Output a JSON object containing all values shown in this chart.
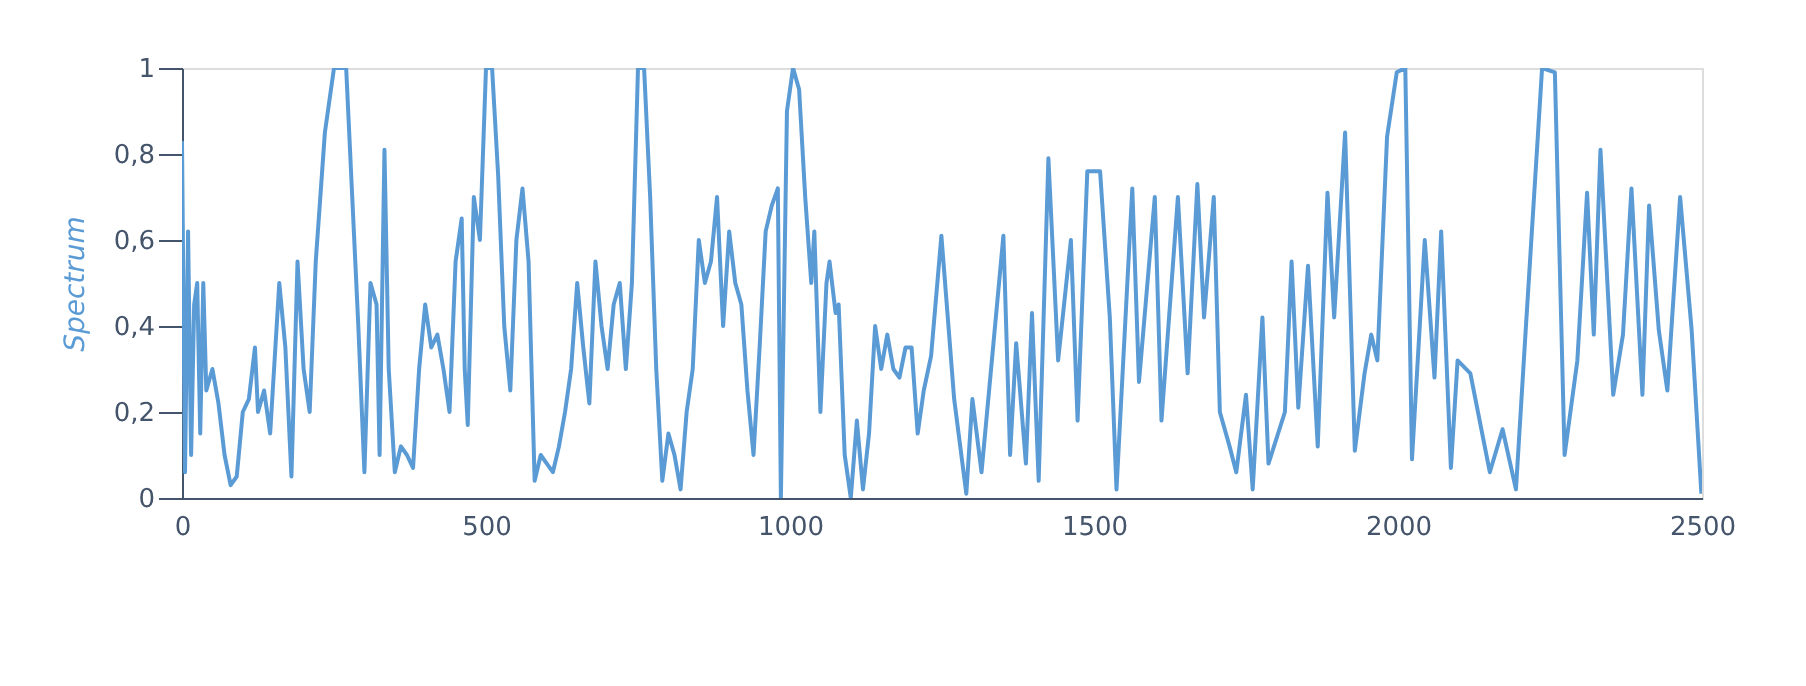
{
  "chart_data": {
    "type": "line",
    "ylabel": "Spectrum",
    "xlim": [
      0,
      2500
    ],
    "xticks": [
      0,
      500,
      1000,
      1500,
      2000,
      2500
    ],
    "ylim": [
      0,
      1
    ],
    "yticks": [
      {
        "value": 0,
        "label": "0"
      },
      {
        "value": 0.2,
        "label": "0,2"
      },
      {
        "value": 0.4,
        "label": "0,4"
      },
      {
        "value": 0.6,
        "label": "0,6"
      },
      {
        "value": 0.8,
        "label": "0,8"
      },
      {
        "value": 1,
        "label": "1"
      }
    ],
    "grid": false,
    "marker": "none",
    "line_style": "solid",
    "series": [
      {
        "color": "#5b9bd5",
        "x": [
          0,
          5,
          10,
          15,
          20,
          25,
          30,
          35,
          40,
          50,
          60,
          70,
          80,
          90,
          100,
          110,
          120,
          125,
          135,
          145,
          160,
          170,
          180,
          190,
          200,
          210,
          220,
          235,
          250,
          270,
          280,
          290,
          300,
          310,
          320,
          325,
          333,
          340,
          350,
          360,
          370,
          380,
          390,
          400,
          410,
          420,
          430,
          440,
          450,
          460,
          465,
          470,
          480,
          490,
          500,
          510,
          520,
          530,
          540,
          550,
          560,
          570,
          580,
          590,
          600,
          610,
          620,
          630,
          640,
          650,
          660,
          670,
          680,
          690,
          700,
          710,
          720,
          730,
          740,
          750,
          760,
          770,
          780,
          790,
          800,
          810,
          820,
          830,
          840,
          850,
          860,
          870,
          880,
          890,
          900,
          910,
          920,
          930,
          940,
          950,
          960,
          970,
          980,
          985,
          995,
          1005,
          1015,
          1025,
          1035,
          1040,
          1050,
          1060,
          1065,
          1075,
          1080,
          1090,
          1100,
          1110,
          1120,
          1130,
          1140,
          1150,
          1160,
          1170,
          1180,
          1190,
          1200,
          1210,
          1220,
          1232,
          1249,
          1270,
          1290,
          1300,
          1315,
          1351,
          1362,
          1372,
          1388,
          1398,
          1409,
          1425,
          1441,
          1462,
          1473,
          1489,
          1510,
          1526,
          1537,
          1563,
          1574,
          1600,
          1611,
          1638,
          1654,
          1670,
          1681,
          1697,
          1707,
          1723,
          1734,
          1750,
          1761,
          1777,
          1787,
          1814,
          1825,
          1836,
          1852,
          1868,
          1884,
          1895,
          1913,
          1929,
          1945,
          1956,
          1966,
          1982,
          1998,
          2012,
          2023,
          2044,
          2060,
          2071,
          2087,
          2098,
          2119,
          2151,
          2172,
          2194,
          2210,
          2237,
          2258,
          2274,
          2295,
          2311,
          2322,
          2333,
          2354,
          2370,
          2384,
          2402,
          2413,
          2429,
          2443,
          2464,
          2483,
          2499
        ],
        "values": [
          0.83,
          0.06,
          0.62,
          0.1,
          0.45,
          0.5,
          0.15,
          0.5,
          0.25,
          0.3,
          0.22,
          0.1,
          0.03,
          0.05,
          0.2,
          0.23,
          0.35,
          0.2,
          0.25,
          0.15,
          0.5,
          0.35,
          0.05,
          0.55,
          0.3,
          0.2,
          0.55,
          0.85,
          1.0,
          1.0,
          0.7,
          0.4,
          0.06,
          0.5,
          0.45,
          0.1,
          0.81,
          0.3,
          0.06,
          0.12,
          0.1,
          0.07,
          0.3,
          0.45,
          0.35,
          0.38,
          0.3,
          0.2,
          0.55,
          0.65,
          0.3,
          0.17,
          0.7,
          0.6,
          1.0,
          1.0,
          0.75,
          0.4,
          0.25,
          0.6,
          0.72,
          0.55,
          0.04,
          0.1,
          0.08,
          0.06,
          0.12,
          0.2,
          0.3,
          0.5,
          0.35,
          0.22,
          0.55,
          0.4,
          0.3,
          0.45,
          0.5,
          0.3,
          0.5,
          1.0,
          1.0,
          0.7,
          0.3,
          0.04,
          0.15,
          0.1,
          0.02,
          0.2,
          0.3,
          0.6,
          0.5,
          0.55,
          0.7,
          0.4,
          0.62,
          0.5,
          0.45,
          0.25,
          0.1,
          0.35,
          0.62,
          0.68,
          0.72,
          0.0,
          0.9,
          1.0,
          0.95,
          0.7,
          0.5,
          0.62,
          0.2,
          0.5,
          0.55,
          0.43,
          0.45,
          0.1,
          0.0,
          0.18,
          0.02,
          0.15,
          0.4,
          0.3,
          0.38,
          0.3,
          0.28,
          0.35,
          0.35,
          0.15,
          0.25,
          0.33,
          0.61,
          0.23,
          0.01,
          0.23,
          0.06,
          0.61,
          0.1,
          0.36,
          0.08,
          0.43,
          0.04,
          0.79,
          0.32,
          0.6,
          0.18,
          0.76,
          0.76,
          0.42,
          0.02,
          0.72,
          0.27,
          0.7,
          0.18,
          0.7,
          0.29,
          0.73,
          0.42,
          0.7,
          0.2,
          0.12,
          0.06,
          0.24,
          0.02,
          0.42,
          0.08,
          0.2,
          0.55,
          0.21,
          0.54,
          0.12,
          0.71,
          0.42,
          0.85,
          0.11,
          0.29,
          0.38,
          0.32,
          0.84,
          0.99,
          1.0,
          0.09,
          0.6,
          0.28,
          0.62,
          0.07,
          0.32,
          0.29,
          0.06,
          0.16,
          0.02,
          0.39,
          1.0,
          0.99,
          0.1,
          0.32,
          0.71,
          0.38,
          0.81,
          0.24,
          0.38,
          0.72,
          0.24,
          0.68,
          0.39,
          0.25,
          0.7,
          0.39,
          0.01
        ]
      }
    ]
  }
}
